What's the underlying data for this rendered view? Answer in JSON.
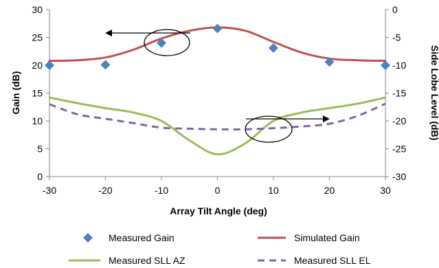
{
  "chart_data": {
    "type": "line",
    "xlabel": "Array Tilt Angle (deg)",
    "ylabel": "Gain (dB)",
    "y2label": "Side Lobe Level (dB)",
    "xlim": [
      -30,
      30
    ],
    "ylim": [
      0,
      30
    ],
    "y2lim": [
      -30,
      0
    ],
    "x_ticks": [
      "-30",
      "-20",
      "-10",
      "0",
      "10",
      "20",
      "30"
    ],
    "y_ticks": [
      "0",
      "5",
      "10",
      "15",
      "20",
      "25",
      "30"
    ],
    "y2_ticks": [
      "-30",
      "-25",
      "-20",
      "-15",
      "-10",
      "-5",
      "0"
    ],
    "grid": false,
    "legend_position": "bottom",
    "series": [
      {
        "name": "Measured Gain",
        "axis": "left",
        "style": "markers",
        "marker": "diamond",
        "color": "#4F81BD",
        "x": [
          -30,
          -20,
          -10,
          0,
          10,
          20,
          30
        ],
        "y": [
          20.0,
          20.1,
          24.0,
          26.6,
          23.1,
          20.6,
          20.0
        ]
      },
      {
        "name": "Simulated Gain",
        "axis": "left",
        "style": "solid",
        "color": "#C0504D",
        "x": [
          -30,
          -25,
          -20,
          -15,
          -10,
          -5,
          0,
          5,
          10,
          15,
          20,
          25,
          30
        ],
        "y": [
          20.8,
          20.9,
          21.4,
          22.8,
          24.8,
          26.2,
          26.8,
          26.2,
          24.2,
          22.3,
          21.2,
          20.9,
          20.8
        ]
      },
      {
        "name": "Measured SLL AZ",
        "axis": "right",
        "style": "solid",
        "color": "#9BBB59",
        "x": [
          -30,
          -25,
          -20,
          -15,
          -10,
          -5,
          0,
          5,
          10,
          15,
          20,
          25,
          30
        ],
        "y": [
          -15.8,
          -16.8,
          -17.7,
          -18.5,
          -20.0,
          -23.5,
          -26.0,
          -24.0,
          -20.0,
          -18.5,
          -17.7,
          -16.9,
          -15.8
        ]
      },
      {
        "name": "Measured SLL EL",
        "axis": "right",
        "style": "dashed",
        "color": "#8064A2",
        "x": [
          -30,
          -25,
          -20,
          -15,
          -10,
          -5,
          0,
          5,
          10,
          15,
          20,
          25,
          30
        ],
        "y": [
          -17.0,
          -18.8,
          -19.6,
          -20.4,
          -21.2,
          -21.4,
          -21.5,
          -21.5,
          -21.3,
          -21.0,
          -20.5,
          -19.1,
          -16.9
        ]
      }
    ]
  }
}
